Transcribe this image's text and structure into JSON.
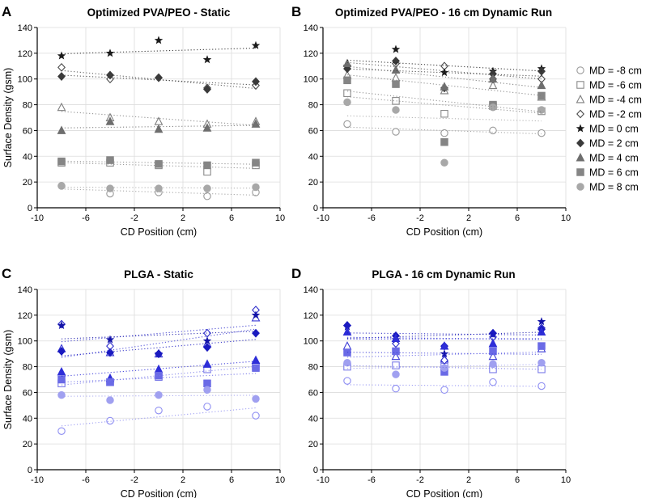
{
  "figure": {
    "label": "Surface density vs CD position for PVA/PEO and PLGA"
  },
  "legend": {
    "entries": [
      {
        "label": "MD = -8 cm",
        "md": -8,
        "marker": "circle",
        "filled": false
      },
      {
        "label": "MD = -6 cm",
        "md": -6,
        "marker": "square",
        "filled": false
      },
      {
        "label": "MD = -4 cm",
        "md": -4,
        "marker": "triangle",
        "filled": false
      },
      {
        "label": "MD = -2 cm",
        "md": -2,
        "marker": "diamond",
        "filled": false
      },
      {
        "label": "MD = 0 cm",
        "md": 0,
        "marker": "star",
        "filled": true
      },
      {
        "label": "MD = 2 cm",
        "md": 2,
        "marker": "diamond",
        "filled": true
      },
      {
        "label": "MD = 4 cm",
        "md": 4,
        "marker": "triangle",
        "filled": true
      },
      {
        "label": "MD = 6 cm",
        "md": 6,
        "marker": "square",
        "filled": true
      },
      {
        "label": "MD = 8 cm",
        "md": 8,
        "marker": "circle",
        "filled": true
      }
    ]
  },
  "chart_data": [
    {
      "type": "scatter",
      "panel": "A",
      "title": "Optimized PVA/PEO - Static",
      "xlabel": "CD Position (cm)",
      "ylabel": "Surface Density (gsm)",
      "xlim": [
        -10,
        10
      ],
      "ylim": [
        0,
        140
      ],
      "xticks": [
        "-10",
        "-6",
        "-2",
        "2",
        "6",
        "10"
      ],
      "yticks": [
        "0",
        "20",
        "40",
        "60",
        "80",
        "100",
        "120",
        "140"
      ],
      "grid": true,
      "x": [
        -8,
        -4,
        0,
        4,
        8
      ],
      "colors": {
        "-8": "#9a9a9a",
        "-6": "#8a8a8a",
        "-4": "#7e7e7e",
        "-2": "#4a4a4a",
        "0": "#1a1a1a",
        "2": "#3a3a3a",
        "4": "#6e6e6e",
        "6": "#858585",
        "8": "#a8a8a8"
      },
      "series": [
        {
          "name": "MD = -8 cm",
          "values": [
            17,
            11,
            12,
            9,
            12
          ]
        },
        {
          "name": "MD = -6 cm",
          "values": [
            35,
            35,
            33,
            28,
            33
          ]
        },
        {
          "name": "MD = -4 cm",
          "values": [
            78,
            70,
            67,
            65,
            67
          ]
        },
        {
          "name": "MD = -2 cm",
          "values": [
            109,
            100,
            101,
            93,
            95
          ]
        },
        {
          "name": "MD = 0 cm",
          "values": [
            118,
            120,
            130,
            115,
            126
          ]
        },
        {
          "name": "MD = 2 cm",
          "values": [
            102,
            103,
            101,
            92,
            98
          ]
        },
        {
          "name": "MD = 4 cm",
          "values": [
            60,
            67,
            61,
            62,
            65
          ]
        },
        {
          "name": "MD = 6 cm",
          "values": [
            36,
            37,
            34,
            33,
            35
          ]
        },
        {
          "name": "MD = 8 cm",
          "values": [
            17,
            15,
            15,
            15,
            16
          ]
        }
      ]
    },
    {
      "type": "scatter",
      "panel": "B",
      "title": "Optimized PVA/PEO - 16 cm Dynamic Run",
      "xlabel": "CD Position (cm)",
      "ylabel": "",
      "xlim": [
        -10,
        10
      ],
      "ylim": [
        0,
        140
      ],
      "xticks": [
        "-10",
        "-6",
        "-2",
        "2",
        "6",
        "10"
      ],
      "yticks": [
        "0",
        "20",
        "40",
        "60",
        "80",
        "100",
        "120",
        "140"
      ],
      "grid": true,
      "x": [
        -8,
        -4,
        0,
        4,
        8
      ],
      "colors": {
        "-8": "#9a9a9a",
        "-6": "#8a8a8a",
        "-4": "#7e7e7e",
        "-2": "#4a4a4a",
        "0": "#1a1a1a",
        "2": "#3a3a3a",
        "4": "#6e6e6e",
        "6": "#858585",
        "8": "#a8a8a8"
      },
      "series": [
        {
          "name": "MD = -8 cm",
          "values": [
            65,
            59,
            58,
            60,
            58
          ]
        },
        {
          "name": "MD = -6 cm",
          "values": [
            89,
            83,
            73,
            79,
            75
          ]
        },
        {
          "name": "MD = -4 cm",
          "values": [
            103,
            101,
            91,
            95,
            86
          ]
        },
        {
          "name": "MD = -2 cm",
          "values": [
            110,
            112,
            110,
            100,
            100
          ]
        },
        {
          "name": "MD = 0 cm",
          "values": [
            110,
            123,
            105,
            106,
            108
          ]
        },
        {
          "name": "MD = 2 cm",
          "values": [
            108,
            114,
            93,
            104,
            106
          ]
        },
        {
          "name": "MD = 4 cm",
          "values": [
            112,
            107,
            94,
            100,
            95
          ]
        },
        {
          "name": "MD = 6 cm",
          "values": [
            99,
            96,
            51,
            80,
            87
          ]
        },
        {
          "name": "MD = 8 cm",
          "values": [
            82,
            76,
            35,
            78,
            76
          ]
        }
      ]
    },
    {
      "type": "scatter",
      "panel": "C",
      "title": "PLGA - Static",
      "xlabel": "CD Position (cm)",
      "ylabel": "Surface Density (gsm)",
      "xlim": [
        -10,
        10
      ],
      "ylim": [
        0,
        140
      ],
      "xticks": [
        "-10",
        "-6",
        "-2",
        "2",
        "6",
        "10"
      ],
      "yticks": [
        "0",
        "20",
        "40",
        "60",
        "80",
        "100",
        "120",
        "140"
      ],
      "grid": true,
      "x": [
        -8,
        -4,
        0,
        4,
        8
      ],
      "colors": {
        "-8": "#8f8ff2",
        "-6": "#7b7be8",
        "-4": "#3b3bd6",
        "-2": "#2f2fcc",
        "0": "#1414a8",
        "2": "#1a1ac0",
        "4": "#2e2ed8",
        "6": "#6a6ae6",
        "8": "#a0a0f0"
      },
      "series": [
        {
          "name": "MD = -8 cm",
          "values": [
            30,
            38,
            46,
            49,
            42
          ]
        },
        {
          "name": "MD = -6 cm",
          "values": [
            67,
            68,
            72,
            78,
            80
          ]
        },
        {
          "name": "MD = -4 cm",
          "values": [
            94,
            91,
            90,
            98,
            118
          ]
        },
        {
          "name": "MD = -2 cm",
          "values": [
            113,
            96,
            90,
            106,
            124
          ]
        },
        {
          "name": "MD = 0 cm",
          "values": [
            112,
            101,
            90,
            100,
            120
          ]
        },
        {
          "name": "MD = 2 cm",
          "values": [
            92,
            91,
            90,
            95,
            106
          ]
        },
        {
          "name": "MD = 4 cm",
          "values": [
            76,
            71,
            78,
            82,
            85
          ]
        },
        {
          "name": "MD = 6 cm",
          "values": [
            70,
            68,
            73,
            67,
            79
          ]
        },
        {
          "name": "MD = 8 cm",
          "values": [
            58,
            54,
            58,
            62,
            55
          ]
        }
      ]
    },
    {
      "type": "scatter",
      "panel": "D",
      "title": "PLGA - 16 cm Dynamic Run",
      "xlabel": "CD Position (cm)",
      "ylabel": "",
      "xlim": [
        -10,
        10
      ],
      "ylim": [
        0,
        140
      ],
      "xticks": [
        "-10",
        "-6",
        "-2",
        "2",
        "6",
        "10"
      ],
      "yticks": [
        "0",
        "20",
        "40",
        "60",
        "80",
        "100",
        "120",
        "140"
      ],
      "grid": true,
      "x": [
        -8,
        -4,
        0,
        4,
        8
      ],
      "colors": {
        "-8": "#8f8ff2",
        "-6": "#7b7be8",
        "-4": "#3b3bd6",
        "-2": "#2f2fcc",
        "0": "#1414a8",
        "2": "#1a1ac0",
        "4": "#2e2ed8",
        "6": "#6a6ae6",
        "8": "#a0a0f0"
      },
      "series": [
        {
          "name": "MD = -8 cm",
          "values": [
            69,
            63,
            62,
            68,
            65
          ]
        },
        {
          "name": "MD = -6 cm",
          "values": [
            80,
            81,
            80,
            78,
            78
          ]
        },
        {
          "name": "MD = -4 cm",
          "values": [
            96,
            88,
            86,
            88,
            94
          ]
        },
        {
          "name": "MD = -2 cm",
          "values": [
            112,
            98,
            85,
            103,
            110
          ]
        },
        {
          "name": "MD = 0 cm",
          "values": [
            111,
            101,
            90,
            105,
            115
          ]
        },
        {
          "name": "MD = 2 cm",
          "values": [
            112,
            104,
            96,
            106,
            109
          ]
        },
        {
          "name": "MD = 4 cm",
          "values": [
            107,
            102,
            96,
            98,
            107
          ]
        },
        {
          "name": "MD = 6 cm",
          "values": [
            91,
            92,
            76,
            92,
            96
          ]
        },
        {
          "name": "MD = 8 cm",
          "values": [
            83,
            74,
            79,
            82,
            83
          ]
        }
      ]
    }
  ]
}
